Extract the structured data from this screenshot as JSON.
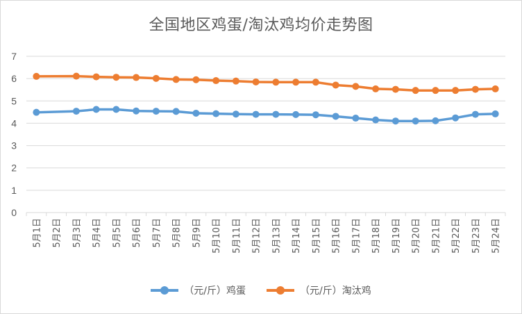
{
  "chart_data": {
    "type": "line",
    "title": "全国地区鸡蛋/淘汰鸡均价走势图",
    "categories": [
      "5月1日",
      "5月2日",
      "5月3日",
      "5月4日",
      "5月5日",
      "5月6日",
      "5月7日",
      "5月8日",
      "5月9日",
      "5月10日",
      "5月11日",
      "5月12日",
      "5月13日",
      "5月14日",
      "5月15日",
      "5月16日",
      "5月17日",
      "5月18日",
      "5月19日",
      "5月20日",
      "5月21日",
      "5月22日",
      "5月23日",
      "5月24日"
    ],
    "series": [
      {
        "name": "（元/斤）鸡蛋",
        "color": "#5b9bd5",
        "values": [
          4.49,
          null,
          4.54,
          4.62,
          4.62,
          4.55,
          4.54,
          4.53,
          4.45,
          4.43,
          4.41,
          4.4,
          4.4,
          4.39,
          4.38,
          4.31,
          4.23,
          4.15,
          4.1,
          4.1,
          4.11,
          4.24,
          4.4,
          4.42
        ]
      },
      {
        "name": "（元/斤）淘汰鸡",
        "color": "#ed7d31",
        "values": [
          6.1,
          null,
          6.11,
          6.08,
          6.06,
          6.05,
          6.01,
          5.96,
          5.95,
          5.91,
          5.89,
          5.85,
          5.84,
          5.84,
          5.84,
          5.71,
          5.65,
          5.54,
          5.52,
          5.47,
          5.47,
          5.47,
          5.52,
          5.54
        ]
      }
    ],
    "ylim": [
      0,
      7
    ],
    "yticks": [
      0,
      1,
      2,
      3,
      4,
      5,
      6,
      7
    ],
    "grid": true,
    "legend_position": "bottom"
  }
}
